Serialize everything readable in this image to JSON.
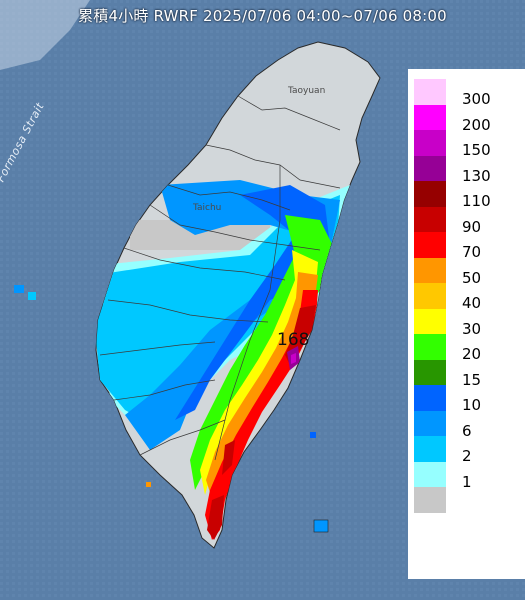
{
  "title": "累積4小時 RWRF 2025/07/06 04:00~07/06 08:00",
  "places": {
    "taoyuan": "Taoyuan",
    "taichung": "Taichu",
    "strait": "Formosa Strait"
  },
  "max_value_label": "168",
  "legend": [
    {
      "label": "300",
      "color": "#ffc8ff"
    },
    {
      "label": "200",
      "color": "#ff00ff"
    },
    {
      "label": "150",
      "color": "#c800c8"
    },
    {
      "label": "130",
      "color": "#960096"
    },
    {
      "label": "110",
      "color": "#960000"
    },
    {
      "label": "90",
      "color": "#c80000"
    },
    {
      "label": "70",
      "color": "#ff0000"
    },
    {
      "label": "50",
      "color": "#ff9600"
    },
    {
      "label": "40",
      "color": "#ffc800"
    },
    {
      "label": "30",
      "color": "#ffff00"
    },
    {
      "label": "20",
      "color": "#32ff00"
    },
    {
      "label": "15",
      "color": "#289600"
    },
    {
      "label": "10",
      "color": "#0064ff"
    },
    {
      "label": "6",
      "color": "#0096ff"
    },
    {
      "label": "2",
      "color": "#00c8ff"
    },
    {
      "label": "1",
      "color": "#96ffff"
    },
    {
      "label": "",
      "color": "#c8c8c8"
    }
  ]
}
